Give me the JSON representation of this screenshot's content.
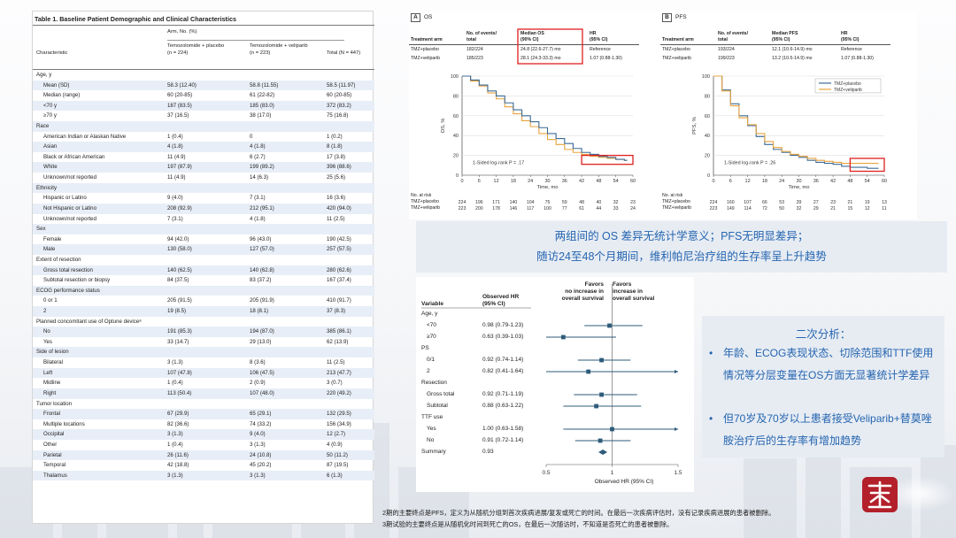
{
  "table1": {
    "title": "Table 1. Baseline Patient Demographic and Clinical Characteristics",
    "header_group": "Arm, No. (%)",
    "col_characteristic": "Characteristic",
    "col_placebo": "Temozolomide + placebo",
    "col_placebo_n": "(n = 224)",
    "col_veliparib": "Temozolomide + veliparib",
    "col_veliparib_n": "(n = 223)",
    "col_total": "Total (N = 447)",
    "rows": [
      {
        "label": "Age, y",
        "type": "section",
        "a": "",
        "b": "",
        "c": ""
      },
      {
        "label": "Mean (SD)",
        "type": "item",
        "a": "58.3 (12.40)",
        "b": "58.8 (11.55)",
        "c": "58.5 (11.97)"
      },
      {
        "label": "Median (range)",
        "type": "item",
        "a": "60 (20-85)",
        "b": "61 (22-82)",
        "c": "60 (20-85)"
      },
      {
        "label": "<70 y",
        "type": "item",
        "a": "187 (83.5)",
        "b": "185 (83.0)",
        "c": "372 (83.2)"
      },
      {
        "label": "≥70 y",
        "type": "item",
        "a": "37 (16.5)",
        "b": "38 (17.0)",
        "c": "75 (16.8)"
      },
      {
        "label": "Race",
        "type": "section",
        "a": "",
        "b": "",
        "c": ""
      },
      {
        "label": "American Indian or Alaskan Native",
        "type": "item",
        "a": "1 (0.4)",
        "b": "0",
        "c": "1 (0.2)"
      },
      {
        "label": "Asian",
        "type": "item",
        "a": "4 (1.8)",
        "b": "4 (1.8)",
        "c": "8 (1.8)"
      },
      {
        "label": "Black or African American",
        "type": "item",
        "a": "11 (4.9)",
        "b": "6 (2.7)",
        "c": "17 (3.8)"
      },
      {
        "label": "White",
        "type": "item",
        "a": "197 (87.9)",
        "b": "199 (89.2)",
        "c": "396 (88.6)"
      },
      {
        "label": "Unknown/not reported",
        "type": "item",
        "a": "11 (4.9)",
        "b": "14 (6.3)",
        "c": "25 (5.6)"
      },
      {
        "label": "Ethnicity",
        "type": "section",
        "a": "",
        "b": "",
        "c": ""
      },
      {
        "label": "Hispanic or Latino",
        "type": "item",
        "a": "9 (4.0)",
        "b": "7 (3.1)",
        "c": "16 (3.6)"
      },
      {
        "label": "Not Hispanic or Latino",
        "type": "item",
        "a": "208 (92.9)",
        "b": "212 (95.1)",
        "c": "420 (94.0)"
      },
      {
        "label": "Unknown/not reported",
        "type": "item",
        "a": "7 (3.1)",
        "b": "4 (1.8)",
        "c": "11 (2.5)"
      },
      {
        "label": "Sex",
        "type": "section",
        "a": "",
        "b": "",
        "c": ""
      },
      {
        "label": "Female",
        "type": "item",
        "a": "94 (42.0)",
        "b": "96 (43.0)",
        "c": "190 (42.5)"
      },
      {
        "label": "Male",
        "type": "item",
        "a": "130 (58.0)",
        "b": "127 (57.0)",
        "c": "257 (57.5)"
      },
      {
        "label": "Extent of resection",
        "type": "section",
        "a": "",
        "b": "",
        "c": ""
      },
      {
        "label": "Gross total resection",
        "type": "item",
        "a": "140 (62.5)",
        "b": "140 (62.8)",
        "c": "280 (62.6)"
      },
      {
        "label": "Subtotal resection or biopsy",
        "type": "item",
        "a": "84 (37.5)",
        "b": "83 (37.2)",
        "c": "167 (37.4)"
      },
      {
        "label": "ECOG performance status",
        "type": "section",
        "a": "",
        "b": "",
        "c": ""
      },
      {
        "label": "0 or 1",
        "type": "item",
        "a": "205 (91.5)",
        "b": "205 (91.9)",
        "c": "410 (91.7)"
      },
      {
        "label": "2",
        "type": "item",
        "a": "19 (8.5)",
        "b": "18 (8.1)",
        "c": "37 (8.3)"
      },
      {
        "label": "Planned concomitant use of Optune deviceᵃ",
        "type": "section",
        "a": "",
        "b": "",
        "c": ""
      },
      {
        "label": "No",
        "type": "item",
        "a": "191 (85.3)",
        "b": "194 (87.0)",
        "c": "385 (86.1)"
      },
      {
        "label": "Yes",
        "type": "item",
        "a": "33 (14.7)",
        "b": "29 (13.0)",
        "c": "62 (13.9)"
      },
      {
        "label": "Side of lesion",
        "type": "section",
        "a": "",
        "b": "",
        "c": ""
      },
      {
        "label": "Bilateral",
        "type": "item",
        "a": "3 (1.3)",
        "b": "8 (3.6)",
        "c": "11 (2.5)"
      },
      {
        "label": "Left",
        "type": "item",
        "a": "107 (47.8)",
        "b": "106 (47.5)",
        "c": "213 (47.7)"
      },
      {
        "label": "Midline",
        "type": "item",
        "a": "1 (0.4)",
        "b": "2 (0.9)",
        "c": "3 (0.7)"
      },
      {
        "label": "Right",
        "type": "item",
        "a": "113 (50.4)",
        "b": "107 (48.0)",
        "c": "220 (49.2)"
      },
      {
        "label": "Tumor location",
        "type": "section",
        "a": "",
        "b": "",
        "c": ""
      },
      {
        "label": "Frontal",
        "type": "item",
        "a": "67 (29.9)",
        "b": "65 (29.1)",
        "c": "132 (29.5)"
      },
      {
        "label": "Multiple locations",
        "type": "item",
        "a": "82 (36.6)",
        "b": "74 (33.2)",
        "c": "156 (34.9)"
      },
      {
        "label": "Occipital",
        "type": "item",
        "a": "3 (1.3)",
        "b": "9 (4.0)",
        "c": "12 (2.7)"
      },
      {
        "label": "Other",
        "type": "item",
        "a": "1 (0.4)",
        "b": "3 (1.3)",
        "c": "4 (0.9)"
      },
      {
        "label": "Parietal",
        "type": "item",
        "a": "26 (11.6)",
        "b": "24 (10.8)",
        "c": "50 (11.2)"
      },
      {
        "label": "Temporal",
        "type": "item",
        "a": "42 (18.8)",
        "b": "45 (20.2)",
        "c": "87 (19.5)"
      },
      {
        "label": "Thalamus",
        "type": "item",
        "a": "3 (1.3)",
        "b": "3 (1.3)",
        "c": "6 (1.3)"
      }
    ]
  },
  "km_os": {
    "panel_letter": "A",
    "panel_name": "OS",
    "h_arm": "Treatment arm",
    "h_events1": "No. of events/",
    "h_events2": "total",
    "h_median1": "Median OS",
    "h_median2": "(90% CI)",
    "h_hr1": "HR",
    "h_hr2": "(95% CI)",
    "row1": {
      "arm": "TMZ+placebo",
      "events": "182/224",
      "median": "24.8 (22.6-27.7) mo",
      "hr": "Reference"
    },
    "row2": {
      "arm": "TMZ+veliparib",
      "events": "185/223",
      "median": "28.1 (24.3-33.3) mo",
      "hr": "1.07 (0.88-1.30)"
    },
    "ylabel": "OS, %",
    "xlabel": "Time, mo",
    "logrank": "1-Sided log-rank P = .17",
    "at_risk_title": "No. at risk",
    "risk_placebo_label": "TMZ+placebo",
    "risk_veliparib_label": "TMZ+veliparib",
    "risk_placebo": [
      "224",
      "196",
      "171",
      "140",
      "104",
      "75",
      "59",
      "48",
      "40",
      "32",
      "23"
    ],
    "risk_veliparib": [
      "223",
      "200",
      "178",
      "146",
      "117",
      "100",
      "77",
      "61",
      "44",
      "33",
      "24"
    ]
  },
  "km_pfs": {
    "panel_letter": "B",
    "panel_name": "PFS",
    "h_arm": "Treatment arm",
    "h_events1": "No. of events/",
    "h_events2": "total",
    "h_median1": "Median PFS",
    "h_median2": "(95% CI)",
    "h_hr1": "HR",
    "h_hr2": "(95% CI)",
    "row1": {
      "arm": "TMZ+placebo",
      "events": "193/224",
      "median": "12.1 (10.6-14.9) mo",
      "hr": "Reference"
    },
    "row2": {
      "arm": "TMZ+veliparib",
      "events": "199/223",
      "median": "13.2 (10.5-14.9) mo",
      "hr": "1.07 (0.88-1.30)"
    },
    "ylabel": "PFS, %",
    "xlabel": "Time, mo",
    "logrank": "1-Sided log-rank P = .26",
    "legend_placebo": "TMZ+placebo",
    "legend_veliparib": "TMZ+veliparib",
    "at_risk_title": "No. at risk",
    "risk_placebo_label": "TMZ+placebo",
    "risk_veliparib_label": "TMZ+veliparib",
    "risk_placebo": [
      "224",
      "160",
      "107",
      "66",
      "53",
      "39",
      "27",
      "23",
      "21",
      "19",
      "13"
    ],
    "risk_veliparib": [
      "223",
      "149",
      "114",
      "72",
      "50",
      "32",
      "29",
      "21",
      "15",
      "12",
      "11"
    ]
  },
  "chart_data": [
    {
      "type": "line",
      "title": "OS",
      "xlabel": "Time, mo",
      "ylabel": "OS, %",
      "xlim": [
        0,
        60
      ],
      "ylim": [
        0,
        100
      ],
      "xticks": [
        0,
        6,
        12,
        18,
        24,
        30,
        36,
        42,
        48,
        54,
        60
      ],
      "yticks": [
        0,
        20,
        40,
        60,
        80,
        100
      ],
      "series": [
        {
          "name": "TMZ+placebo",
          "color": "#e8a33d",
          "x": [
            0,
            3,
            6,
            9,
            12,
            15,
            18,
            21,
            24,
            27,
            30,
            33,
            36,
            39,
            42,
            45,
            48,
            51,
            54,
            57
          ],
          "y": [
            100,
            95,
            90,
            83,
            77,
            69,
            62,
            55,
            49,
            42,
            36,
            31,
            26,
            23,
            21,
            19,
            18,
            17,
            16,
            15
          ]
        },
        {
          "name": "TMZ+veliparib",
          "color": "#3c6b96",
          "x": [
            0,
            3,
            6,
            9,
            12,
            15,
            18,
            21,
            24,
            27,
            30,
            33,
            36,
            39,
            42,
            45,
            48,
            51,
            54,
            57
          ],
          "y": [
            100,
            96,
            91,
            85,
            80,
            73,
            66,
            60,
            54,
            48,
            42,
            37,
            32,
            27,
            23,
            21,
            19,
            18,
            16,
            15
          ]
        }
      ]
    },
    {
      "type": "line",
      "title": "PFS",
      "xlabel": "Time, mo",
      "ylabel": "PFS, %",
      "xlim": [
        0,
        60
      ],
      "ylim": [
        0,
        100
      ],
      "xticks": [
        0,
        6,
        12,
        18,
        24,
        30,
        36,
        42,
        48,
        54,
        60
      ],
      "yticks": [
        0,
        20,
        40,
        60,
        80,
        100
      ],
      "legend": "top-right",
      "series": [
        {
          "name": "TMZ+placebo",
          "color": "#3c6b96",
          "x": [
            0,
            3,
            6,
            9,
            12,
            15,
            18,
            21,
            24,
            27,
            30,
            33,
            36,
            39,
            42,
            45,
            48,
            51,
            54,
            57
          ],
          "y": [
            100,
            86,
            72,
            60,
            50,
            39,
            31,
            26,
            23,
            20,
            18,
            15,
            13,
            12,
            11,
            9,
            8,
            8,
            7,
            7
          ]
        },
        {
          "name": "TMZ+veliparib",
          "color": "#e8a33d",
          "x": [
            0,
            3,
            6,
            9,
            12,
            15,
            18,
            21,
            24,
            27,
            30,
            33,
            36,
            39,
            42,
            45,
            48,
            51,
            54,
            57
          ],
          "y": [
            100,
            85,
            70,
            58,
            51,
            42,
            34,
            28,
            24,
            21,
            19,
            17,
            15,
            14,
            13,
            12,
            12,
            12,
            12,
            12
          ]
        }
      ]
    },
    {
      "type": "scatter",
      "title": "",
      "xlabel": "Observed HR (95% CI)",
      "xlim": [
        0.5,
        1.5
      ],
      "xticks": [
        0.5,
        1,
        1.5
      ],
      "series": [
        {
          "name": "",
          "labels": [
            "<70",
            "≥70",
            "0/1",
            "2",
            "Gross total",
            "Subtotal",
            "Yes",
            "No",
            "Summary"
          ],
          "values": [
            0.98,
            0.63,
            0.92,
            0.82,
            0.92,
            0.88,
            1.0,
            0.91,
            0.93
          ],
          "lower": [
            0.79,
            0.39,
            0.74,
            0.41,
            0.71,
            0.63,
            0.63,
            0.72,
            null
          ],
          "upper": [
            1.23,
            1.03,
            1.14,
            1.64,
            1.19,
            1.22,
            1.58,
            1.14,
            null
          ]
        }
      ]
    }
  ],
  "forest": {
    "h_variable": "Variable",
    "h_hr1": "Observed HR",
    "h_hr2": "(95% CI)",
    "h_favors_left1": "Favors",
    "h_favors_left2": "no increase in",
    "h_favors_left3": "overall survival",
    "h_favors_right1": "Favors",
    "h_favors_right2": "increase in",
    "h_favors_right3": "overall survival",
    "xlabel": "Observed HR (95% CI)",
    "ticks": [
      "0.5",
      "1",
      "1.5"
    ],
    "rows": [
      {
        "label": "Age, y",
        "type": "section",
        "ci": ""
      },
      {
        "label": "<70",
        "type": "item",
        "ci": "0.98 (0.79-1.23)"
      },
      {
        "label": "≥70",
        "type": "item",
        "ci": "0.63 (0.39-1.03)"
      },
      {
        "label": "PS",
        "type": "section",
        "ci": ""
      },
      {
        "label": "0/1",
        "type": "item",
        "ci": "0.92 (0.74-1.14)"
      },
      {
        "label": "2",
        "type": "item",
        "ci": "0.82 (0.41-1.64)"
      },
      {
        "label": "Resection",
        "type": "section",
        "ci": ""
      },
      {
        "label": "Gross total",
        "type": "item",
        "ci": "0.92 (0.71-1.19)"
      },
      {
        "label": "Subtotal",
        "type": "item",
        "ci": "0.88 (0.63-1.22)"
      },
      {
        "label": "TTF use",
        "type": "section",
        "ci": ""
      },
      {
        "label": "Yes",
        "type": "item",
        "ci": "1.00 (0.63-1.58)"
      },
      {
        "label": "No",
        "type": "item",
        "ci": "0.91 (0.72-1.14)"
      },
      {
        "label": "Summary",
        "type": "section",
        "ci": "0.93"
      }
    ]
  },
  "summary": {
    "line1": "两组间的 OS 差异无统计学意义；PFS无明显差异；",
    "line2": "随访24至48个月期间，维利帕尼治疗组的生存率呈上升趋势"
  },
  "analysis": {
    "title": "二次分析：",
    "bullet1": "年龄、ECOG表现状态、切除范围和TTF使用情况等分层变量在OS方面无显著统计学差异",
    "bullet2": "但70岁及70岁以上患者接受Veliparib+替莫唑胺治疗后的生存率有增加趋势"
  },
  "notes": {
    "line1": "2期的主要终点是PFS，定义为从随机分组到首次疾病进展/复发或死亡的时间。在最后一次疾病评估时，没有记录疾病进展的患者被删除。",
    "line2": "3期试验的主要终点是从随机化时间到死亡的OS，在最后一次随访时，不知道是否死亡的患者被删除。"
  },
  "colors": {
    "accent_blue": "#2565b0",
    "box_bg": "#e7ecf3",
    "series_orange": "#e8a33d",
    "series_blue": "#3c6b96",
    "highlight_red": "#e01f1f",
    "table_shade": "#e8eef7",
    "forest_marker": "#2e5b7a",
    "seal_red": "#b3202a"
  }
}
